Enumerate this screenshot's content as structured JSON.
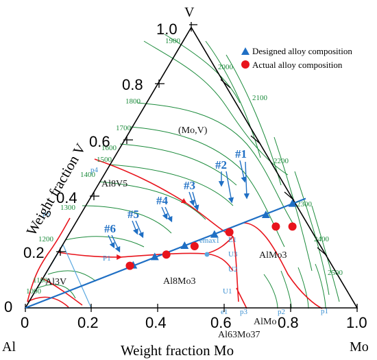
{
  "corners": {
    "top": "V",
    "left": "Al",
    "right": "Mo"
  },
  "axis_titles": {
    "left": "Weight fraction V",
    "bottom": "Weight fraction Mo"
  },
  "axis_ticks": {
    "left": [
      "0",
      "0.2",
      "0.4",
      "0.6",
      "0.8",
      "1.0"
    ],
    "bottom": [
      "0",
      "0.2",
      "0.4",
      "0.6",
      "0.8",
      "1.0"
    ]
  },
  "legend": {
    "designed": "Designed alloy composition",
    "actual": "Actual alloy composition",
    "designed_color": "#1f6fc4",
    "actual_color": "#e8141c"
  },
  "phases": {
    "movs": "(Mo,V)",
    "al8v5": "Al8V5",
    "al3v": "Al3V",
    "al8mo3": "Al8Mo3",
    "almo3": "AlMo3",
    "almo": "AlMo",
    "al63mo37": "Al63Mo37"
  },
  "isotherms": [
    "1900",
    "2000",
    "1800",
    "2100",
    "1700",
    "1600",
    "1500",
    "2200",
    "1400",
    "1300",
    "2300",
    "1200",
    "2400",
    "1100",
    "2500",
    "1000"
  ],
  "points": [
    "p4",
    "p5",
    "emax1",
    "E1",
    "U3",
    "U2",
    "U1",
    "P1",
    "p3",
    "p2",
    "e1",
    "p1"
  ],
  "alloy_numbers": [
    "#1",
    "#2",
    "#3",
    "#4",
    "#5",
    "#6"
  ],
  "colors": {
    "isotherm": "#1a8a3a",
    "boundary": "#e8141c",
    "line": "#1f6fc4",
    "frame": "#000000"
  },
  "chart_data": {
    "type": "ternary",
    "components": [
      "Al",
      "Mo",
      "V"
    ],
    "designed_alloys": [
      {
        "label": "#1",
        "Mo": 0.62,
        "V": 0.37
      },
      {
        "label": "#2",
        "Mo": 0.56,
        "V": 0.33
      },
      {
        "label": "#3",
        "Mo": 0.44,
        "V": 0.26
      },
      {
        "label": "#4",
        "Mo": 0.37,
        "V": 0.22
      },
      {
        "label": "#5",
        "Mo": 0.3,
        "V": 0.18
      },
      {
        "label": "#6",
        "Mo": 0.25,
        "V": 0.15
      }
    ],
    "actual_alloys": [
      {
        "label": "#1",
        "Mo": 0.66,
        "V": 0.29
      },
      {
        "label": "#2",
        "Mo": 0.61,
        "V": 0.29
      },
      {
        "label": "#3",
        "Mo": 0.48,
        "V": 0.27
      },
      {
        "label": "#4",
        "Mo": 0.4,
        "V": 0.22
      },
      {
        "label": "#5",
        "Mo": 0.33,
        "V": 0.19
      },
      {
        "label": "#6",
        "Mo": 0.24,
        "V": 0.15
      }
    ],
    "composition_line": {
      "from": {
        "Mo": 0.0,
        "V": 0.0
      },
      "to": {
        "Mo": 0.65,
        "V": 0.39
      }
    }
  }
}
